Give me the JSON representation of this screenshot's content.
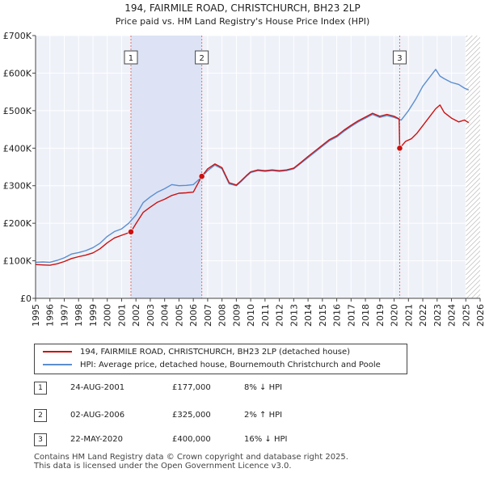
{
  "chart_data": {
    "type": "line",
    "title": "194, FAIRMILE ROAD, CHRISTCHURCH, BH23 2LP",
    "subtitle": "Price paid vs. HM Land Registry's House Price Index (HPI)",
    "xlim": [
      1995,
      2026
    ],
    "ylim": [
      0,
      700000
    ],
    "y_ticks": [
      {
        "value": 0,
        "label": "£0"
      },
      {
        "value": 100000,
        "label": "£100K"
      },
      {
        "value": 200000,
        "label": "£200K"
      },
      {
        "value": 300000,
        "label": "£300K"
      },
      {
        "value": 400000,
        "label": "£400K"
      },
      {
        "value": 500000,
        "label": "£500K"
      },
      {
        "value": 600000,
        "label": "£600K"
      },
      {
        "value": 700000,
        "label": "£700K"
      }
    ],
    "x_ticks": [
      "1995",
      "1996",
      "1997",
      "1998",
      "1999",
      "2000",
      "2001",
      "2002",
      "2003",
      "2004",
      "2005",
      "2006",
      "2007",
      "2008",
      "2009",
      "2010",
      "2011",
      "2012",
      "2013",
      "2014",
      "2015",
      "2016",
      "2017",
      "2018",
      "2019",
      "2020",
      "2021",
      "2022",
      "2023",
      "2024",
      "2025",
      "2026"
    ],
    "series": [
      {
        "name": "HPI: Average price, detached house, Bournemouth Christchurch and Poole",
        "color": "#5b8ecf",
        "x": [
          1995.0,
          1995.5,
          1996.0,
          1996.5,
          1997.0,
          1997.5,
          1998.0,
          1998.5,
          1999.0,
          1999.5,
          2000.0,
          2000.5,
          2001.0,
          2001.5,
          2002.0,
          2002.5,
          2003.0,
          2003.5,
          2004.0,
          2004.5,
          2005.0,
          2005.5,
          2006.0,
          2006.5,
          2007.0,
          2007.5,
          2008.0,
          2008.5,
          2009.0,
          2009.3,
          2009.7,
          2010.0,
          2010.5,
          2011.0,
          2011.5,
          2012.0,
          2012.5,
          2013.0,
          2013.5,
          2014.0,
          2014.5,
          2015.0,
          2015.5,
          2016.0,
          2016.5,
          2017.0,
          2017.5,
          2018.0,
          2018.5,
          2019.0,
          2019.5,
          2020.0,
          2020.5,
          2021.0,
          2021.5,
          2022.0,
          2022.5,
          2022.9,
          2023.2,
          2023.5,
          2024.0,
          2024.5,
          2024.9,
          2025.2
        ],
        "values": [
          96000,
          97000,
          96000,
          101000,
          108000,
          118000,
          122000,
          127000,
          135000,
          147000,
          165000,
          178000,
          185000,
          200000,
          222000,
          255000,
          270000,
          283000,
          292000,
          303000,
          300000,
          301000,
          303000,
          320000,
          340000,
          355000,
          345000,
          305000,
          300000,
          310000,
          325000,
          335000,
          340000,
          338000,
          340000,
          338000,
          340000,
          345000,
          360000,
          375000,
          390000,
          405000,
          420000,
          430000,
          445000,
          458000,
          470000,
          480000,
          490000,
          482000,
          487000,
          482000,
          475000,
          500000,
          530000,
          565000,
          590000,
          610000,
          592000,
          585000,
          575000,
          570000,
          560000,
          555000
        ]
      },
      {
        "name": "194, FAIRMILE ROAD, CHRISTCHURCH, BH23 2LP (detached house)",
        "color": "#cc1111",
        "x": [
          1995.0,
          1995.5,
          1996.0,
          1996.5,
          1997.0,
          1997.5,
          1998.0,
          1998.5,
          1999.0,
          1999.5,
          2000.0,
          2000.5,
          2001.0,
          2001.3,
          2001.65,
          2002.0,
          2002.5,
          2003.0,
          2003.5,
          2004.0,
          2004.5,
          2005.0,
          2005.5,
          2006.0,
          2006.59,
          2007.0,
          2007.5,
          2008.0,
          2008.5,
          2009.0,
          2009.3,
          2009.7,
          2010.0,
          2010.5,
          2011.0,
          2011.5,
          2012.0,
          2012.5,
          2013.0,
          2013.5,
          2014.0,
          2014.5,
          2015.0,
          2015.5,
          2016.0,
          2016.5,
          2017.0,
          2017.5,
          2018.0,
          2018.5,
          2019.0,
          2019.5,
          2020.0,
          2020.35,
          2020.39,
          2020.8,
          2021.2,
          2021.6,
          2022.0,
          2022.5,
          2022.9,
          2023.2,
          2023.5,
          2024.0,
          2024.5,
          2024.9,
          2025.2
        ],
        "values": [
          90000,
          89000,
          88000,
          92000,
          98000,
          106000,
          111000,
          115000,
          121000,
          132000,
          148000,
          161000,
          168000,
          172000,
          177000,
          199000,
          229000,
          243000,
          256000,
          264000,
          274000,
          280000,
          281000,
          283000,
          325000,
          345000,
          358000,
          348000,
          308000,
          302000,
          312000,
          327000,
          337000,
          342000,
          340000,
          342000,
          340000,
          342000,
          347000,
          362000,
          378000,
          393000,
          408000,
          423000,
          433000,
          448000,
          461000,
          473000,
          483000,
          493000,
          485000,
          490000,
          485000,
          478000,
          400000,
          418000,
          425000,
          440000,
          460000,
          485000,
          505000,
          515000,
          495000,
          480000,
          470000,
          475000,
          468000
        ]
      }
    ],
    "sales": [
      {
        "num": "1",
        "x": 2001.65,
        "value": 177000,
        "date": "24-AUG-2001",
        "price": "£177,000",
        "hpi": "8% ↓ HPI"
      },
      {
        "num": "2",
        "x": 2006.59,
        "value": 325000,
        "date": "02-AUG-2006",
        "price": "£325,000",
        "hpi": "2% ↑ HPI"
      },
      {
        "num": "3",
        "x": 2020.39,
        "value": 400000,
        "date": "22-MAY-2020",
        "price": "£400,000",
        "hpi": "16% ↓ HPI"
      }
    ],
    "shaded_spans": [
      [
        2001.65,
        2006.59
      ]
    ],
    "hatched_from": 2025.0
  },
  "legend": {
    "property_label": "194, FAIRMILE ROAD, CHRISTCHURCH, BH23 2LP (detached house)",
    "hpi_label": "HPI: Average price, detached house, Bournemouth Christchurch and Poole",
    "property_color": "#cc1111",
    "hpi_color": "#5b8ecf"
  },
  "footer": {
    "line1": "Contains HM Land Registry data © Crown copyright and database right 2025.",
    "line2": "This data is licensed under the Open Government Licence v3.0."
  }
}
